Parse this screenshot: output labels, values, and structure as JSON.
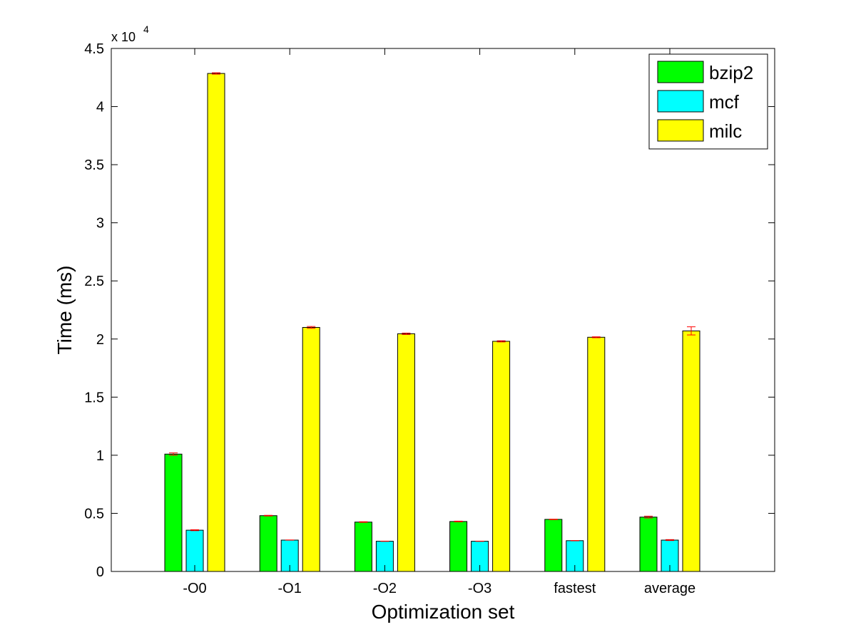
{
  "chart_data": {
    "type": "bar",
    "xlabel": "Optimization set",
    "ylabel": "Time (ms)",
    "y_scale_multiplier": "x 10",
    "y_scale_exponent": "4",
    "ylim": [
      0,
      45000
    ],
    "yticks": [
      0,
      5000,
      10000,
      15000,
      20000,
      25000,
      30000,
      35000,
      40000,
      45000
    ],
    "ytick_labels": [
      "0",
      "0.5",
      "1",
      "1.5",
      "2",
      "2.5",
      "3",
      "3.5",
      "4",
      "4.5"
    ],
    "categories": [
      "-O0",
      "-O1",
      "-O2",
      "-O3",
      "fastest",
      "average"
    ],
    "grid": false,
    "legend_position": "top-right",
    "error_bar_color": "#ff0000",
    "series": [
      {
        "name": "bzip2",
        "color": "#00ff00",
        "values": [
          10100,
          4800,
          4250,
          4300,
          4480,
          4680
        ],
        "errors": [
          100,
          30,
          30,
          30,
          20,
          80
        ]
      },
      {
        "name": "mcf",
        "color": "#00ffff",
        "values": [
          3550,
          2700,
          2600,
          2600,
          2650,
          2700
        ],
        "errors": [
          40,
          10,
          10,
          10,
          10,
          40
        ]
      },
      {
        "name": "milc",
        "color": "#ffff00",
        "values": [
          42850,
          21000,
          20450,
          19800,
          20150,
          20700
        ],
        "errors": [
          60,
          80,
          60,
          50,
          40,
          350
        ]
      }
    ]
  }
}
